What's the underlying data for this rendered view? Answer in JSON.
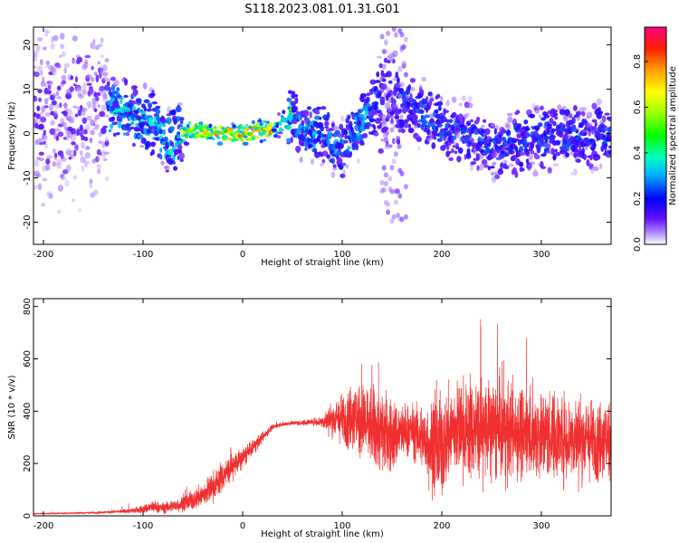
{
  "figure": {
    "title": "S118.2023.081.01.31.G01"
  },
  "chart_data": [
    {
      "type": "heatmap",
      "title": "",
      "xlabel": "Height of straight line (km)",
      "ylabel": "Frequency (Hz)",
      "xlim": [
        -210,
        370
      ],
      "ylim": [
        -25,
        24
      ],
      "x_ticks": [
        -200,
        -100,
        0,
        100,
        200,
        300
      ],
      "y_ticks": [
        -20,
        -10,
        0,
        10,
        20
      ],
      "colorbar": {
        "label": "Normalized spectral amplitude",
        "range": [
          0.0,
          0.95
        ],
        "ticks": [
          0.0,
          0.2,
          0.4,
          0.6,
          0.8
        ]
      },
      "ridge": {
        "x": [
          -130,
          -110,
          -90,
          -75,
          -60,
          -50,
          -30,
          0,
          30,
          50,
          60,
          80,
          100,
          120,
          140,
          150,
          200,
          250,
          300,
          370
        ],
        "freq": [
          5,
          4,
          2,
          -2,
          0,
          1,
          0,
          0,
          1,
          4,
          1,
          0,
          -4,
          3,
          7,
          9,
          2,
          -3,
          -1,
          0
        ]
      }
    },
    {
      "type": "line",
      "title": "",
      "xlabel": "Height of straight line (km)",
      "ylabel": "SNR (10 * v/v)",
      "xlim": [
        -210,
        370
      ],
      "ylim": [
        0,
        830
      ],
      "x_ticks": [
        -200,
        -100,
        0,
        100,
        200,
        300
      ],
      "y_ticks": [
        0,
        200,
        400,
        600,
        800
      ],
      "series": [
        {
          "color": "#f03030",
          "x": [
            -210,
            -180,
            -150,
            -130,
            -110,
            -100,
            -90,
            -80,
            -60,
            -50,
            -40,
            -30,
            -20,
            -10,
            0,
            10,
            20,
            30,
            40,
            50,
            60,
            70,
            80,
            90,
            100,
            110,
            120,
            130,
            140,
            150,
            160,
            170,
            180,
            190,
            200,
            210,
            220,
            230,
            240,
            250,
            260,
            270,
            280,
            290,
            300,
            310,
            320,
            330,
            340,
            350,
            360,
            370
          ],
          "center": [
            8,
            10,
            12,
            15,
            20,
            25,
            35,
            30,
            45,
            60,
            80,
            110,
            150,
            190,
            220,
            260,
            300,
            340,
            350,
            355,
            355,
            360,
            360,
            370,
            370,
            380,
            360,
            340,
            320,
            300,
            320,
            330,
            300,
            260,
            260,
            330,
            330,
            330,
            330,
            330,
            320,
            320,
            320,
            320,
            310,
            310,
            300,
            300,
            300,
            290,
            290,
            290
          ],
          "spread": [
            3,
            4,
            5,
            6,
            12,
            20,
            30,
            25,
            35,
            45,
            60,
            70,
            70,
            60,
            50,
            35,
            25,
            12,
            10,
            10,
            12,
            15,
            30,
            80,
            120,
            160,
            180,
            200,
            200,
            180,
            140,
            120,
            160,
            220,
            240,
            220,
            230,
            240,
            240,
            240,
            240,
            230,
            220,
            220,
            220,
            210,
            210,
            200,
            200,
            190,
            190,
            190
          ],
          "peak": [
            15,
            18,
            20,
            25,
            60,
            80,
            140,
            70,
            100,
            130,
            160,
            210,
            270,
            260,
            260,
            290,
            320,
            360,
            365,
            370,
            380,
            400,
            420,
            480,
            550,
            600,
            620,
            640,
            640,
            590,
            520,
            460,
            470,
            500,
            540,
            600,
            690,
            710,
            760,
            830,
            710,
            700,
            750,
            660,
            640,
            600,
            610,
            580,
            600,
            560,
            550,
            540
          ]
        }
      ]
    }
  ]
}
